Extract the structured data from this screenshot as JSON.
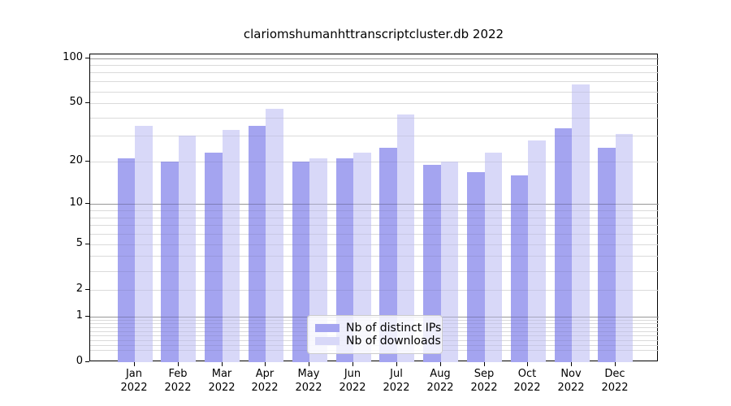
{
  "title": "clariomshumanhttranscriptcluster.db 2022",
  "chart_data": {
    "type": "bar",
    "title": "clariomshumanhttranscriptcluster.db 2022",
    "categories": [
      "Jan",
      "Feb",
      "Mar",
      "Apr",
      "May",
      "Jun",
      "Jul",
      "Aug",
      "Sep",
      "Oct",
      "Nov",
      "Dec"
    ],
    "category_year": "2022",
    "series": [
      {
        "name": "Nb of distinct IPs",
        "color": "#a4a4f0",
        "values": [
          21,
          20,
          23,
          35,
          20,
          21,
          25,
          19,
          17,
          16,
          34,
          25
        ]
      },
      {
        "name": "Nb of downloads",
        "color": "#d8d8f8",
        "values": [
          35,
          30,
          33,
          46,
          21,
          23,
          42,
          20,
          23,
          28,
          67,
          31
        ]
      }
    ],
    "xlabel": "",
    "ylabel": "",
    "yscale": "log1p",
    "ylim": [
      0,
      106
    ],
    "yticks": [
      0,
      1,
      2,
      5,
      10,
      20,
      50,
      100
    ],
    "grid": {
      "major": [
        1,
        10,
        100
      ],
      "minor": [
        0.2,
        0.3,
        0.4,
        0.5,
        0.6,
        0.7,
        0.8,
        0.9,
        2,
        3,
        4,
        5,
        6,
        7,
        8,
        9,
        20,
        30,
        40,
        50,
        60,
        70,
        80,
        90
      ],
      "major_color": "#c4c4c4",
      "minor_color": "#ececec"
    },
    "legend": {
      "position": "lower center",
      "entries": [
        "Nb of distinct IPs",
        "Nb of downloads"
      ]
    }
  }
}
